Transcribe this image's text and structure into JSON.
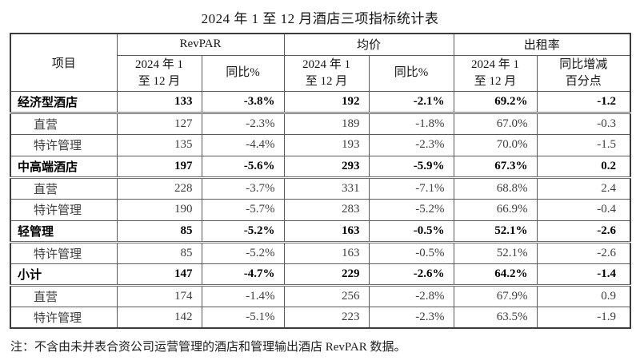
{
  "page": {
    "title": "2024 年 1 至 12 月酒店三项指标统计表",
    "note": "注：不含由未并表合资公司运营管理的酒店和管理输出酒店 RevPAR 数据。"
  },
  "table": {
    "header": {
      "item": "项目",
      "groups": [
        "RevPAR",
        "均价",
        "出租率"
      ],
      "sub": [
        "2024 年 1\n至 12 月",
        "同比%",
        "2024 年 1\n至 12 月",
        "同比%",
        "2024 年 1\n至 12 月",
        "同比增减\n百分点"
      ]
    },
    "rows": [
      {
        "cells": [
          "经济型酒店",
          "133",
          "-3.8%",
          "192",
          "-2.1%",
          "69.2%",
          "-1.2"
        ]
      },
      {
        "cells": [
          "直营",
          "127",
          "-2.3%",
          "189",
          "-1.8%",
          "67.0%",
          "-0.3"
        ]
      },
      {
        "cells": [
          "特许管理",
          "135",
          "-4.4%",
          "193",
          "-2.3%",
          "70.0%",
          "-1.5"
        ]
      },
      {
        "cells": [
          "中高端酒店",
          "197",
          "-5.6%",
          "293",
          "-5.9%",
          "67.3%",
          "0.2"
        ]
      },
      {
        "cells": [
          "直营",
          "228",
          "-3.7%",
          "331",
          "-7.1%",
          "68.8%",
          "2.4"
        ]
      },
      {
        "cells": [
          "特许管理",
          "190",
          "-5.7%",
          "283",
          "-5.2%",
          "66.9%",
          "-0.4"
        ]
      },
      {
        "cells": [
          "轻管理",
          "85",
          "-5.2%",
          "163",
          "-0.5%",
          "52.1%",
          "-2.6"
        ]
      },
      {
        "cells": [
          "特许管理",
          "85",
          "-5.2%",
          "163",
          "-0.5%",
          "52.1%",
          "-2.6"
        ]
      },
      {
        "cells": [
          "小计",
          "147",
          "-4.7%",
          "229",
          "-2.6%",
          "64.2%",
          "-1.4"
        ]
      },
      {
        "cells": [
          "直营",
          "174",
          "-1.4%",
          "256",
          "-2.8%",
          "67.9%",
          "0.9"
        ]
      },
      {
        "cells": [
          "特许管理",
          "142",
          "-5.1%",
          "223",
          "-2.3%",
          "63.5%",
          "-1.9"
        ]
      }
    ]
  }
}
